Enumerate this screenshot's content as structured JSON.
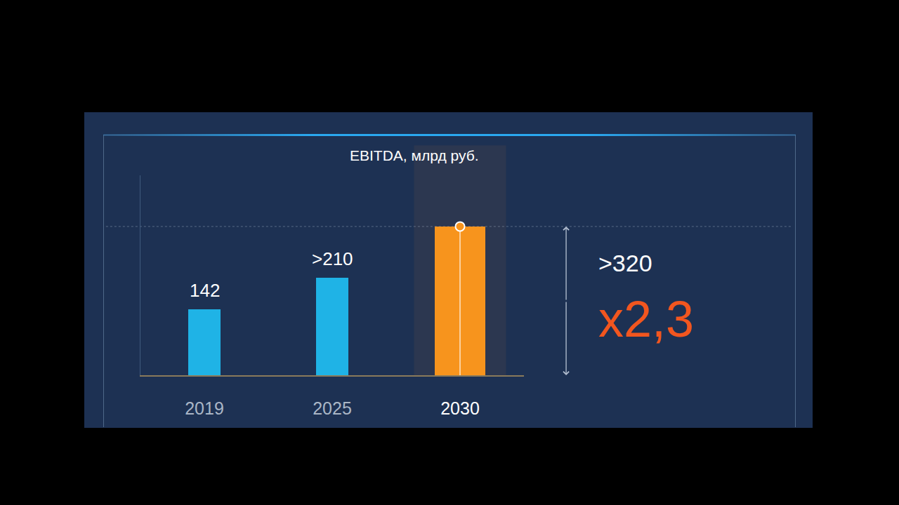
{
  "chart_data": {
    "type": "bar",
    "title": "EBITDA, млрд руб.",
    "categories": [
      "2019",
      "2025",
      "2030"
    ],
    "values": [
      142,
      210,
      320
    ],
    "value_labels": [
      "142",
      ">210",
      ">320"
    ],
    "data_labels": true,
    "colors": [
      "#1fb3e6",
      "#1fb3e6",
      "#f7941d"
    ],
    "annotations": [
      "x2,3"
    ],
    "ylim": [
      0,
      430
    ],
    "yticks": [],
    "tick_labels": "x",
    "grid": false
  }
}
